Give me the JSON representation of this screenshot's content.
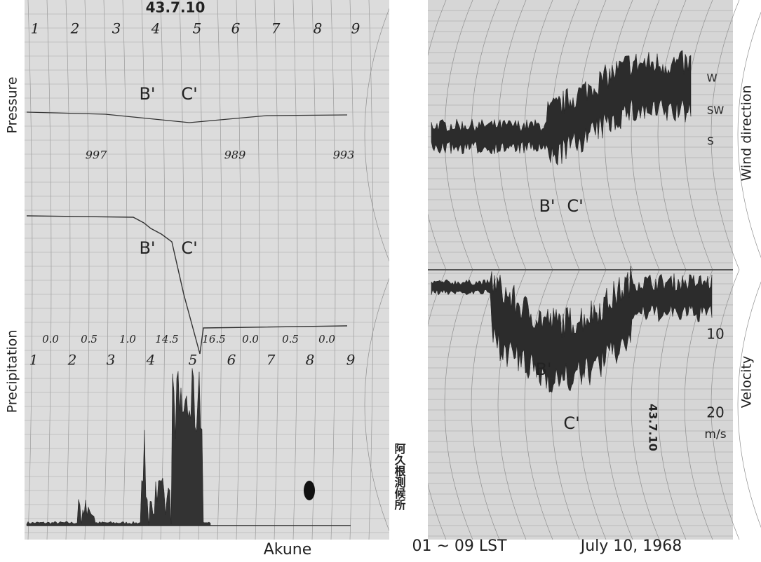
{
  "left_panel": {
    "date_stamp": "43.7.10",
    "hours_top": [
      "1",
      "2",
      "3",
      "4",
      "5",
      "6",
      "7",
      "8",
      "9"
    ],
    "pressure_label": "Pressure",
    "pressure_markers": [
      "B'",
      "C'"
    ],
    "pressure_readings": [
      "997",
      "989",
      "993"
    ],
    "rain_markers": [
      "B'",
      "C'"
    ],
    "rain_amounts": [
      "0.0",
      "0.5",
      "1.0",
      "14.5",
      "16.5",
      "0.0",
      "0.5",
      "0.0"
    ],
    "hours_bottom": [
      "1",
      "2",
      "3",
      "4",
      "5",
      "6",
      "7",
      "8",
      "9"
    ],
    "precipitation_label": "Precipitation",
    "station_stamp": "阿久根測候所"
  },
  "right_panel": {
    "wind_direction_label": "Wind direction",
    "direction_ticks": [
      "W",
      "SW",
      "S"
    ],
    "direction_markers": [
      "B'",
      "C'"
    ],
    "velocity_label": "Velocity",
    "velocity_ticks": [
      "10",
      "20"
    ],
    "velocity_unit": "m/s",
    "velocity_markers": [
      "B'",
      "C'"
    ],
    "record_stamp": "43.7.10"
  },
  "caption": {
    "station": "Akune",
    "time_range": "01 ~ 09 LST",
    "date": "July 10, 1968"
  }
}
